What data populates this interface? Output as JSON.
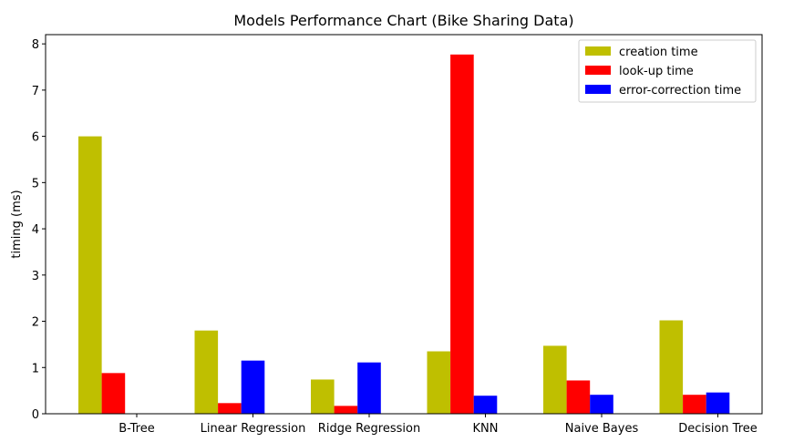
{
  "chart_data": {
    "type": "bar",
    "title": "Models Performance Chart (Bike Sharing Data)",
    "xlabel": "",
    "ylabel": "timing (ms)",
    "ylim": [
      0,
      8.2
    ],
    "yticks": [
      0,
      1,
      2,
      3,
      4,
      5,
      6,
      7,
      8
    ],
    "categories": [
      "B-Tree",
      "Linear Regression",
      "Ridge Regression",
      "KNN",
      "Naive Bayes",
      "Decision Tree"
    ],
    "series": [
      {
        "name": "creation time",
        "color": "#bfbf00",
        "values": [
          6.0,
          1.8,
          0.74,
          1.35,
          1.47,
          2.02
        ]
      },
      {
        "name": "look-up time",
        "color": "#ff0000",
        "values": [
          0.88,
          0.23,
          0.17,
          7.77,
          0.72,
          0.41
        ]
      },
      {
        "name": "error-correction time",
        "color": "#0000ff",
        "values": [
          0,
          1.15,
          1.11,
          0.39,
          0.41,
          0.46
        ]
      }
    ],
    "legend_position": "top-right",
    "grid": false
  }
}
